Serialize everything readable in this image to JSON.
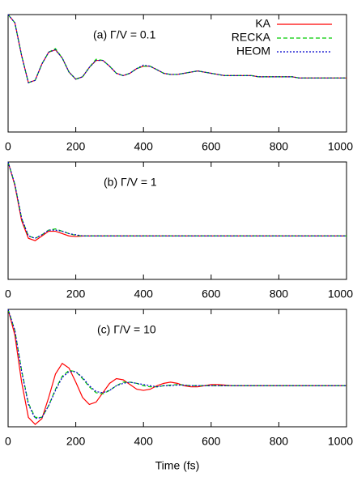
{
  "chart_data": [
    {
      "type": "line",
      "label": "(a) Γ/V = 0.1",
      "legend": "top-right",
      "xlim": [
        0,
        1000
      ],
      "ylim": [
        0,
        1
      ],
      "xticks": [
        0,
        200,
        400,
        600,
        800,
        1000
      ],
      "x": [
        0,
        20,
        40,
        60,
        80,
        100,
        120,
        140,
        160,
        180,
        200,
        220,
        240,
        260,
        280,
        300,
        320,
        340,
        360,
        380,
        400,
        420,
        440,
        460,
        480,
        500,
        520,
        540,
        560,
        580,
        600,
        620,
        640,
        660,
        680,
        700,
        720,
        740,
        760,
        780,
        800,
        820,
        840,
        860,
        880,
        900,
        920,
        940,
        960,
        980,
        1000
      ],
      "series": [
        {
          "name": "KA",
          "color": "#ff0000",
          "dash": "solid",
          "values": [
            1.0,
            0.93,
            0.65,
            0.42,
            0.44,
            0.58,
            0.68,
            0.7,
            0.63,
            0.51,
            0.45,
            0.47,
            0.55,
            0.61,
            0.61,
            0.56,
            0.5,
            0.48,
            0.5,
            0.54,
            0.56,
            0.56,
            0.53,
            0.5,
            0.49,
            0.49,
            0.5,
            0.51,
            0.52,
            0.51,
            0.5,
            0.49,
            0.48,
            0.48,
            0.48,
            0.48,
            0.48,
            0.47,
            0.47,
            0.47,
            0.47,
            0.47,
            0.47,
            0.46,
            0.46,
            0.46,
            0.46,
            0.46,
            0.46,
            0.46,
            0.46
          ]
        },
        {
          "name": "RECKA",
          "color": "#00cc00",
          "dash": "dashed",
          "values": [
            1.0,
            0.93,
            0.65,
            0.42,
            0.44,
            0.58,
            0.68,
            0.71,
            0.63,
            0.51,
            0.45,
            0.47,
            0.55,
            0.62,
            0.61,
            0.56,
            0.5,
            0.48,
            0.5,
            0.54,
            0.56,
            0.56,
            0.53,
            0.5,
            0.49,
            0.49,
            0.5,
            0.51,
            0.52,
            0.51,
            0.5,
            0.49,
            0.48,
            0.48,
            0.48,
            0.48,
            0.48,
            0.47,
            0.47,
            0.47,
            0.47,
            0.47,
            0.47,
            0.46,
            0.46,
            0.46,
            0.46,
            0.46,
            0.46,
            0.46,
            0.46
          ]
        },
        {
          "name": "HEOM",
          "color": "#0000cc",
          "dash": "dotted",
          "values": [
            1.0,
            0.93,
            0.65,
            0.42,
            0.44,
            0.58,
            0.68,
            0.7,
            0.63,
            0.51,
            0.45,
            0.47,
            0.55,
            0.61,
            0.61,
            0.56,
            0.5,
            0.48,
            0.5,
            0.54,
            0.57,
            0.56,
            0.53,
            0.5,
            0.49,
            0.49,
            0.5,
            0.51,
            0.52,
            0.51,
            0.5,
            0.49,
            0.48,
            0.48,
            0.48,
            0.48,
            0.48,
            0.47,
            0.47,
            0.47,
            0.47,
            0.47,
            0.47,
            0.46,
            0.46,
            0.46,
            0.46,
            0.46,
            0.46,
            0.46,
            0.46
          ]
        }
      ]
    },
    {
      "type": "line",
      "label": "(b) Γ/V = 1",
      "xlim": [
        0,
        1000
      ],
      "ylim": [
        0,
        1
      ],
      "xticks": [
        0,
        200,
        400,
        600,
        800,
        1000
      ],
      "x": [
        0,
        20,
        40,
        60,
        80,
        100,
        120,
        140,
        160,
        180,
        200,
        220,
        240,
        260,
        280,
        300,
        320,
        340,
        360,
        380,
        400,
        420,
        440,
        460,
        480,
        500,
        520,
        540,
        560,
        580,
        600,
        620,
        640,
        660,
        680,
        700,
        720,
        740,
        760,
        780,
        800,
        820,
        840,
        860,
        880,
        900,
        920,
        940,
        960,
        980,
        1000
      ],
      "series": [
        {
          "color": "#ff0000",
          "dash": "solid",
          "values": [
            1.0,
            0.8,
            0.5,
            0.35,
            0.33,
            0.37,
            0.41,
            0.41,
            0.39,
            0.37,
            0.365,
            0.37,
            0.37,
            0.37,
            0.37,
            0.37,
            0.37,
            0.37,
            0.37,
            0.37,
            0.37,
            0.37,
            0.37,
            0.37,
            0.37,
            0.37,
            0.37,
            0.37,
            0.37,
            0.37,
            0.37,
            0.37,
            0.37,
            0.37,
            0.37,
            0.37,
            0.37,
            0.37,
            0.37,
            0.37,
            0.37,
            0.37,
            0.37,
            0.37,
            0.37,
            0.37,
            0.37,
            0.37,
            0.37,
            0.37,
            0.37
          ]
        },
        {
          "color": "#00cc00",
          "dash": "dashed",
          "values": [
            1.0,
            0.81,
            0.52,
            0.37,
            0.35,
            0.38,
            0.42,
            0.43,
            0.41,
            0.39,
            0.375,
            0.37,
            0.37,
            0.37,
            0.37,
            0.37,
            0.37,
            0.37,
            0.37,
            0.37,
            0.37,
            0.37,
            0.37,
            0.37,
            0.37,
            0.37,
            0.37,
            0.37,
            0.37,
            0.37,
            0.37,
            0.37,
            0.37,
            0.37,
            0.37,
            0.37,
            0.37,
            0.37,
            0.37,
            0.37,
            0.37,
            0.37,
            0.37,
            0.37,
            0.37,
            0.37,
            0.37,
            0.37,
            0.37,
            0.37,
            0.37
          ]
        },
        {
          "color": "#0000cc",
          "dash": "dotted",
          "values": [
            1.0,
            0.81,
            0.52,
            0.37,
            0.35,
            0.38,
            0.42,
            0.42,
            0.41,
            0.39,
            0.38,
            0.37,
            0.37,
            0.37,
            0.37,
            0.37,
            0.37,
            0.37,
            0.37,
            0.37,
            0.37,
            0.37,
            0.37,
            0.37,
            0.37,
            0.37,
            0.37,
            0.37,
            0.37,
            0.37,
            0.37,
            0.37,
            0.37,
            0.37,
            0.37,
            0.37,
            0.37,
            0.37,
            0.37,
            0.37,
            0.37,
            0.37,
            0.37,
            0.37,
            0.37,
            0.37,
            0.37,
            0.37,
            0.37,
            0.37,
            0.37
          ]
        }
      ]
    },
    {
      "type": "line",
      "label": "(c) Γ/V = 10",
      "xlabel": "Time (fs)",
      "xlim": [
        0,
        1000
      ],
      "ylim": [
        0,
        1
      ],
      "xticks": [
        0,
        200,
        400,
        600,
        800,
        1000
      ],
      "x": [
        0,
        20,
        40,
        60,
        80,
        100,
        120,
        140,
        160,
        180,
        200,
        220,
        240,
        260,
        280,
        300,
        320,
        340,
        360,
        380,
        400,
        420,
        440,
        460,
        480,
        500,
        520,
        540,
        560,
        580,
        600,
        620,
        640,
        660,
        680,
        700,
        720,
        740,
        760,
        780,
        800,
        820,
        840,
        860,
        880,
        900,
        920,
        940,
        960,
        980,
        1000
      ],
      "series": [
        {
          "color": "#ff0000",
          "dash": "solid",
          "values": [
            1.0,
            0.78,
            0.38,
            0.08,
            0.02,
            0.07,
            0.25,
            0.45,
            0.54,
            0.5,
            0.38,
            0.25,
            0.19,
            0.21,
            0.29,
            0.37,
            0.41,
            0.4,
            0.36,
            0.32,
            0.31,
            0.32,
            0.35,
            0.37,
            0.38,
            0.37,
            0.35,
            0.34,
            0.34,
            0.35,
            0.36,
            0.36,
            0.355,
            0.35,
            0.35,
            0.35,
            0.35,
            0.35,
            0.35,
            0.35,
            0.35,
            0.35,
            0.35,
            0.35,
            0.35,
            0.35,
            0.35,
            0.35,
            0.35,
            0.35,
            0.35
          ]
        },
        {
          "color": "#00cc00",
          "dash": "dashed",
          "values": [
            1.0,
            0.82,
            0.48,
            0.2,
            0.08,
            0.08,
            0.18,
            0.32,
            0.43,
            0.48,
            0.47,
            0.41,
            0.34,
            0.29,
            0.28,
            0.31,
            0.35,
            0.38,
            0.38,
            0.37,
            0.35,
            0.34,
            0.34,
            0.35,
            0.355,
            0.36,
            0.355,
            0.35,
            0.35,
            0.35,
            0.35,
            0.35,
            0.35,
            0.35,
            0.35,
            0.35,
            0.35,
            0.35,
            0.35,
            0.35,
            0.35,
            0.35,
            0.35,
            0.35,
            0.35,
            0.35,
            0.35,
            0.35,
            0.35,
            0.35,
            0.35
          ]
        },
        {
          "color": "#0000cc",
          "dash": "dotted",
          "values": [
            1.0,
            0.82,
            0.47,
            0.19,
            0.07,
            0.08,
            0.18,
            0.31,
            0.42,
            0.47,
            0.47,
            0.42,
            0.35,
            0.3,
            0.29,
            0.31,
            0.35,
            0.37,
            0.38,
            0.37,
            0.36,
            0.35,
            0.34,
            0.35,
            0.35,
            0.355,
            0.355,
            0.35,
            0.35,
            0.35,
            0.35,
            0.35,
            0.35,
            0.35,
            0.35,
            0.35,
            0.35,
            0.35,
            0.35,
            0.35,
            0.35,
            0.35,
            0.35,
            0.35,
            0.35,
            0.35,
            0.35,
            0.35,
            0.35,
            0.35,
            0.35
          ]
        }
      ]
    }
  ]
}
